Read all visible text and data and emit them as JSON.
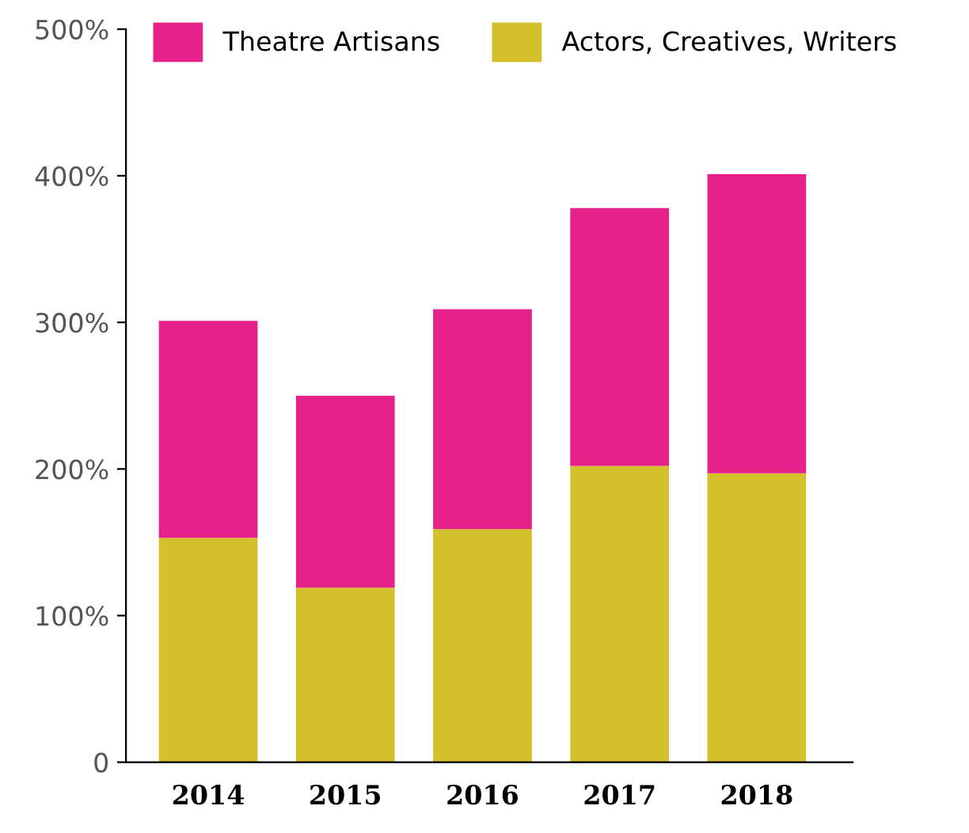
{
  "chart_data": {
    "type": "bar",
    "stacked": true,
    "categories": [
      "2014",
      "2015",
      "2016",
      "2017",
      "2018"
    ],
    "series": [
      {
        "name": "Actors, Creatives, Writers",
        "color": "#d4c02a",
        "values": [
          153,
          119,
          159,
          202,
          197
        ]
      },
      {
        "name": "Theatre Artisans",
        "color": "#e6218a",
        "values": [
          148,
          131,
          150,
          176,
          204
        ]
      }
    ],
    "ylim": [
      0,
      500
    ],
    "yticks": [
      {
        "value": 0,
        "label": "0"
      },
      {
        "value": 100,
        "label": "100%"
      },
      {
        "value": 200,
        "label": "200%"
      },
      {
        "value": 300,
        "label": "300%"
      },
      {
        "value": 400,
        "label": "400%"
      },
      {
        "value": 500,
        "label": "500%"
      }
    ],
    "grid": false,
    "legend": "top"
  }
}
